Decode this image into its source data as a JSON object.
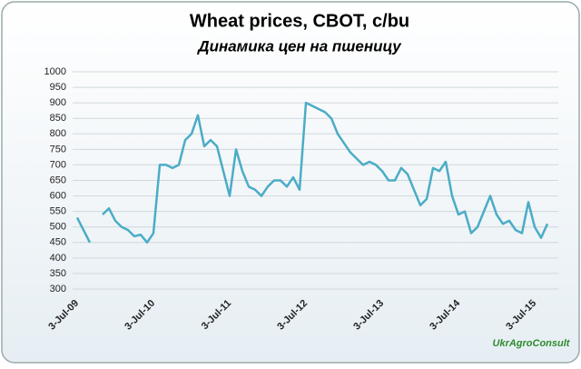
{
  "chart_data": {
    "type": "line",
    "title": "Wheat prices, CBOT, c/bu",
    "subtitle": "Динамика  цен на пшеницу",
    "source": "UkrAgroConsult",
    "categories": [
      "3-Jul-09",
      null,
      null,
      null,
      null,
      null,
      null,
      null,
      null,
      null,
      null,
      null,
      "3-Jul-10",
      null,
      null,
      null,
      null,
      null,
      null,
      null,
      null,
      null,
      null,
      null,
      "3-Jul-11",
      null,
      null,
      null,
      null,
      null,
      null,
      null,
      null,
      null,
      null,
      null,
      "3-Jul-12",
      null,
      null,
      null,
      null,
      null,
      null,
      null,
      null,
      null,
      null,
      null,
      "3-Jul-13",
      null,
      null,
      null,
      null,
      null,
      null,
      null,
      null,
      null,
      null,
      null,
      "3-Jul-14",
      null,
      null,
      null,
      null,
      null,
      null,
      null,
      null,
      null,
      null,
      null,
      "3-Jul-15",
      null,
      null
    ],
    "series": [
      {
        "name": "Wheat",
        "color": "#4bacc6",
        "values": [
          530,
          490,
          450,
          null,
          540,
          560,
          520,
          500,
          490,
          470,
          475,
          450,
          480,
          700,
          700,
          690,
          700,
          780,
          800,
          860,
          760,
          780,
          760,
          680,
          600,
          750,
          680,
          630,
          620,
          600,
          630,
          650,
          650,
          630,
          660,
          620,
          900,
          890,
          880,
          870,
          850,
          800,
          770,
          740,
          720,
          700,
          710,
          700,
          680,
          650,
          650,
          690,
          670,
          620,
          570,
          590,
          690,
          680,
          710,
          600,
          540,
          550,
          480,
          500,
          550,
          600,
          540,
          510,
          520,
          490,
          480,
          580,
          500,
          465,
          510
        ]
      }
    ],
    "ylim": [
      300,
      1000
    ],
    "yticks": [
      300,
      350,
      400,
      450,
      500,
      550,
      600,
      650,
      700,
      750,
      800,
      850,
      900,
      950,
      1000
    ],
    "grid": true
  }
}
